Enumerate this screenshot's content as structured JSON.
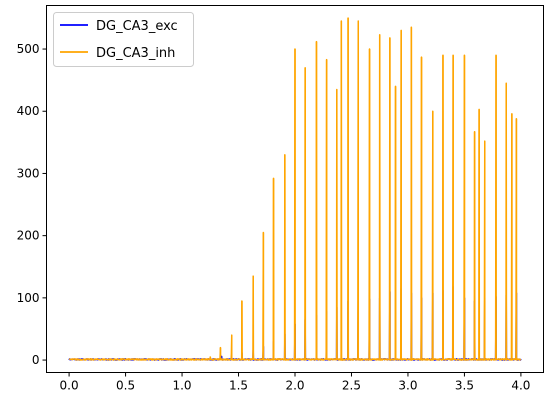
{
  "chart_data": {
    "type": "line",
    "title": "",
    "xlabel": "",
    "ylabel": "",
    "xlim": [
      -0.2,
      4.2
    ],
    "ylim": [
      -20,
      570
    ],
    "x_ticks": [
      0.0,
      0.5,
      1.0,
      1.5,
      2.0,
      2.5,
      3.0,
      3.5,
      4.0
    ],
    "x_tick_labels": [
      "0.0",
      "0.5",
      "1.0",
      "1.5",
      "2.0",
      "2.5",
      "3.0",
      "3.5",
      "4.0"
    ],
    "y_ticks": [
      0,
      100,
      200,
      300,
      400,
      500
    ],
    "y_tick_labels": [
      "0",
      "100",
      "200",
      "300",
      "400",
      "500"
    ],
    "grid": false,
    "legend_position": "top-left",
    "series": [
      {
        "name": "DG_CA3_exc",
        "color": "#0000ff",
        "peak_times": [
          1.25,
          1.35,
          1.44,
          1.53,
          1.63,
          1.72,
          1.81,
          1.91,
          2.0,
          2.09,
          2.19,
          2.28,
          2.37,
          2.47,
          2.56,
          2.66,
          2.75,
          2.84,
          2.94,
          3.03,
          3.12,
          3.22,
          3.31,
          3.4,
          3.5,
          3.59,
          3.68,
          3.78,
          3.87,
          3.96
        ],
        "peak_values": [
          3,
          6,
          9,
          12,
          16,
          22,
          30,
          42,
          58,
          65,
          72,
          78,
          85,
          95,
          96,
          98,
          100,
          110,
          115,
          108,
          100,
          108,
          112,
          118,
          100,
          95,
          100,
          102,
          105,
          108
        ]
      },
      {
        "name": "DG_CA3_inh",
        "color": "#ffa500",
        "peak_times": [
          1.25,
          1.34,
          1.44,
          1.53,
          1.63,
          1.72,
          1.81,
          1.91,
          2.0,
          2.09,
          2.19,
          2.28,
          2.37,
          2.41,
          2.47,
          2.56,
          2.66,
          2.75,
          2.84,
          2.89,
          2.94,
          3.03,
          3.12,
          3.22,
          3.31,
          3.4,
          3.5,
          3.59,
          3.63,
          3.68,
          3.78,
          3.87,
          3.92,
          3.96
        ],
        "peak_values": [
          5,
          20,
          40,
          95,
          135,
          205,
          292,
          330,
          500,
          470,
          512,
          483,
          435,
          545,
          550,
          545,
          500,
          523,
          518,
          440,
          530,
          535,
          487,
          400,
          490,
          490,
          490,
          367,
          403,
          352,
          490,
          445,
          396,
          388
        ]
      }
    ],
    "baseline_noise": 2
  }
}
